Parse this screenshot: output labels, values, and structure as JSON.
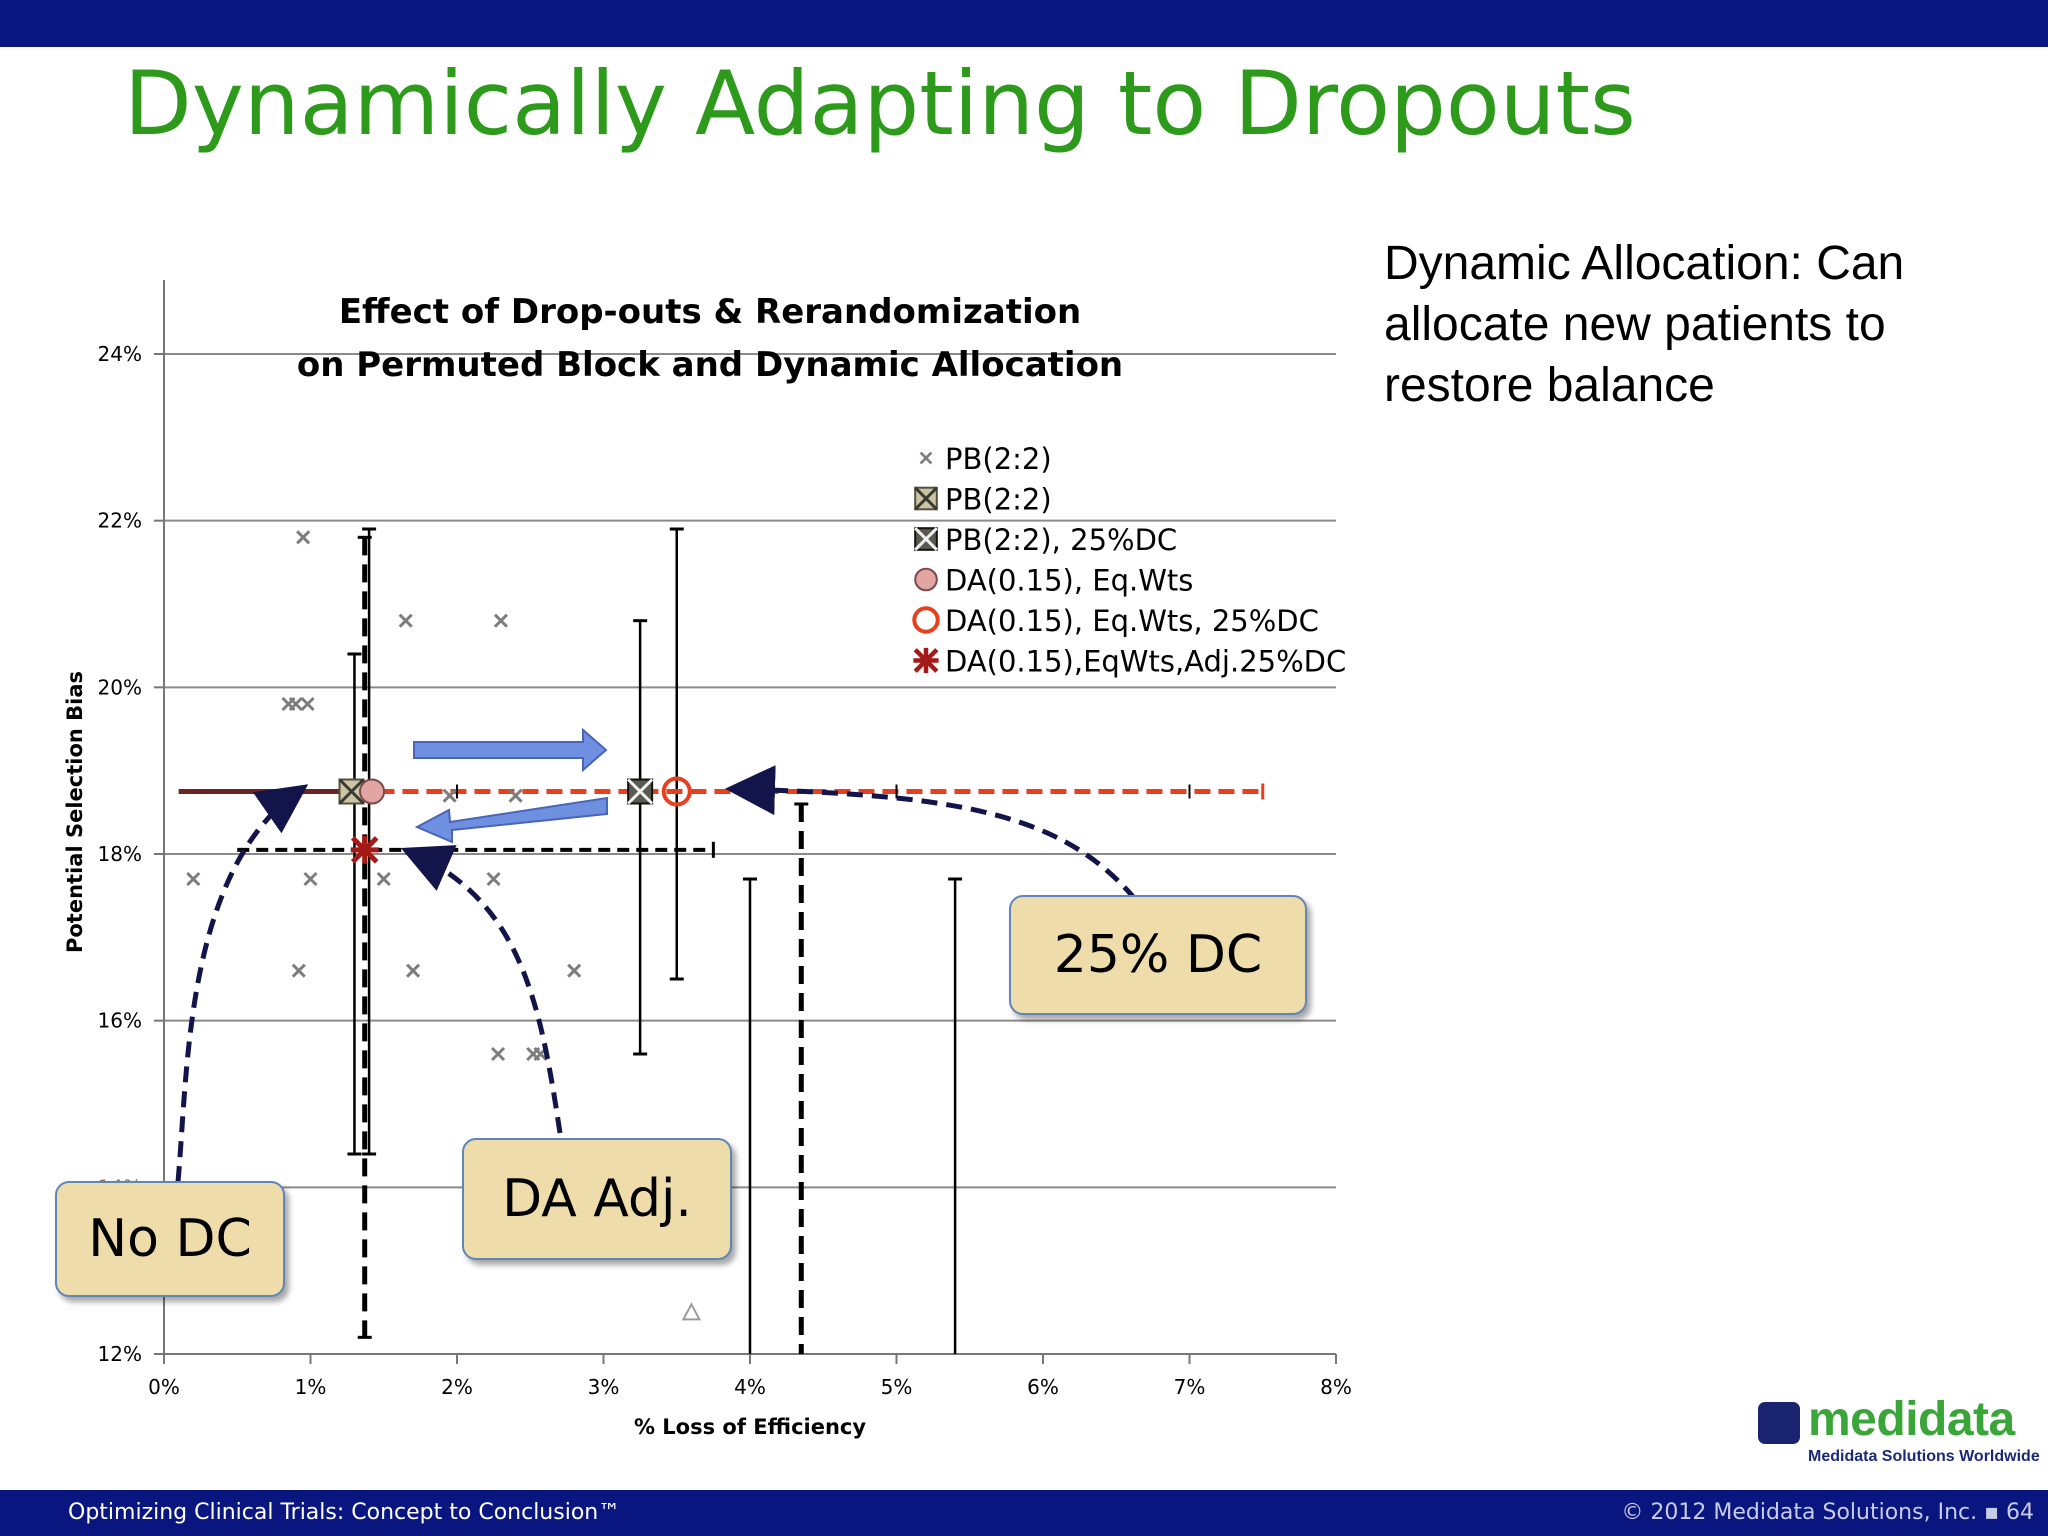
{
  "slide": {
    "title": "Dynamically Adapting to Dropouts",
    "side_text": "Dynamic Allocation:  Can allocate new patients to restore balance",
    "footer_left": "Optimizing Clinical Trials: Concept to Conclusion™",
    "footer_right": "© 2012 Medidata Solutions, Inc. ▪ 64",
    "logo_word": "medidata",
    "logo_tagline": "Medidata Solutions Worldwide"
  },
  "colors": {
    "banner": "#0a1680",
    "title_green": "#2d9a1c",
    "da_red": "#e8401e",
    "callout_fill": "#eedcab",
    "arrow_blue": "#6f8fe0"
  },
  "chart_data": {
    "type": "scatter",
    "title": "Effect of Drop-outs & Rerandomization",
    "subtitle": "on Permuted Block and Dynamic Allocation",
    "xlabel": "% Loss of Efficiency",
    "ylabel": "Potential Selection Bias",
    "xlim": [
      0,
      8
    ],
    "ylim": [
      12,
      25
    ],
    "x_ticks": [
      "0%",
      "1%",
      "2%",
      "3%",
      "4%",
      "5%",
      "6%",
      "7%",
      "8%"
    ],
    "y_ticks": [
      "12%",
      "14%",
      "16%",
      "18%",
      "20%",
      "22%",
      "24%"
    ],
    "grid": "horizontal",
    "legend_position": "top-right",
    "legend": [
      "PB(2:2)",
      "PB(2:2)",
      "PB(2:2), 25%DC",
      "DA(0.15), Eq.Wts",
      "DA(0.15), Eq.Wts, 25%DC",
      "DA(0.15),EqWts,Adj.25%DC"
    ],
    "series": [
      {
        "marker": "small-x",
        "points": [
          [
            0.95,
            21.8
          ],
          [
            1.65,
            20.8
          ],
          [
            2.3,
            20.8
          ],
          [
            0.85,
            19.8
          ],
          [
            0.9,
            19.8
          ],
          [
            0.98,
            19.8
          ],
          [
            1.95,
            18.7
          ],
          [
            2.4,
            18.7
          ],
          [
            0.2,
            17.7
          ],
          [
            1.0,
            17.7
          ],
          [
            1.5,
            17.7
          ],
          [
            2.25,
            17.7
          ],
          [
            0.92,
            16.6
          ],
          [
            1.7,
            16.6
          ],
          [
            2.8,
            16.6
          ],
          [
            2.28,
            15.6
          ],
          [
            2.52,
            15.6
          ],
          [
            2.57,
            15.6
          ]
        ]
      },
      {
        "marker": "boxed-x-light",
        "points": [
          [
            1.28,
            18.75
          ]
        ]
      },
      {
        "marker": "boxed-x-dark",
        "points": [
          [
            3.25,
            18.75
          ]
        ]
      },
      {
        "marker": "pink-circle",
        "points": [
          [
            1.42,
            18.75
          ]
        ]
      },
      {
        "marker": "red-ring",
        "points": [
          [
            3.5,
            18.75
          ]
        ]
      },
      {
        "marker": "red-star",
        "points": [
          [
            1.37,
            18.05
          ]
        ]
      },
      {
        "marker": "triangle",
        "points": [
          [
            3.6,
            12.5
          ]
        ]
      }
    ],
    "error_bars": [
      {
        "x": 1.3,
        "low": 14.4,
        "high": 20.4,
        "style": "solid"
      },
      {
        "x": 1.4,
        "low": 14.4,
        "high": 21.9,
        "style": "solid"
      },
      {
        "x": 1.37,
        "low": 12.2,
        "high": 21.8,
        "style": "dashed"
      },
      {
        "x": 3.25,
        "low": 15.6,
        "high": 20.8,
        "style": "solid"
      },
      {
        "x": 3.5,
        "low": 16.5,
        "high": 21.9,
        "style": "solid"
      },
      {
        "x": 4.0,
        "low": 12.0,
        "high": 17.7,
        "style": "solid"
      },
      {
        "x": 5.4,
        "low": 12.0,
        "high": 17.7,
        "style": "solid"
      },
      {
        "x": 4.35,
        "low": 12.0,
        "high": 18.6,
        "style": "dashed"
      }
    ],
    "horizontal_lines": [
      {
        "y": 18.75,
        "from": 0.1,
        "to": 1.3,
        "style": "solid-dark"
      },
      {
        "y": 18.75,
        "from": 1.3,
        "to": 7.5,
        "style": "dashed-red"
      },
      {
        "y": 18.05,
        "from": 0.5,
        "to": 3.75,
        "style": "dashed-black"
      }
    ],
    "callouts": [
      "No DC",
      "DA Adj.",
      "25% DC"
    ]
  }
}
